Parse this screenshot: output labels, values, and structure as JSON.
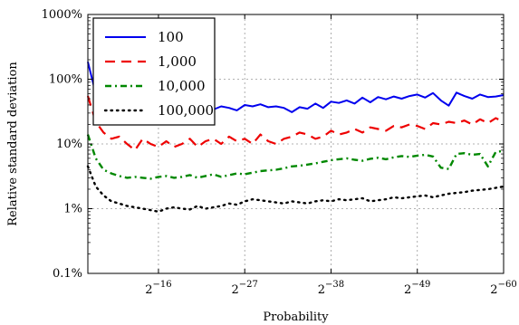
{
  "chart_data": {
    "type": "line",
    "title": "",
    "xlabel": "Probability",
    "ylabel": "Relative standard deviation",
    "x_scale": "log2 (probability 2^k, k = exponent)",
    "x_exponent_range": [
      -7,
      -60
    ],
    "x_ticks": [
      {
        "base": "2",
        "exp": "−16",
        "k": -16
      },
      {
        "base": "2",
        "exp": "−27",
        "k": -27
      },
      {
        "base": "2",
        "exp": "−38",
        "k": -38
      },
      {
        "base": "2",
        "exp": "−49",
        "k": -49
      },
      {
        "base": "2",
        "exp": "−60",
        "k": -60
      }
    ],
    "y_scale": "log10",
    "y_range_percent": [
      0.1,
      1000
    ],
    "y_ticks": [
      {
        "label": "0.1%",
        "value": 0.1
      },
      {
        "label": "1%",
        "value": 1
      },
      {
        "label": "10%",
        "value": 10
      },
      {
        "label": "100%",
        "value": 100
      },
      {
        "label": "1000%",
        "value": 1000
      }
    ],
    "grid": true,
    "legend_position": "top-left",
    "x_exponents": [
      -7,
      -8,
      -9,
      -10,
      -11,
      -12,
      -13,
      -14,
      -15,
      -16,
      -17,
      -18,
      -19,
      -20,
      -21,
      -22,
      -23,
      -24,
      -25,
      -26,
      -27,
      -28,
      -29,
      -30,
      -31,
      -32,
      -33,
      -34,
      -35,
      -36,
      -37,
      -38,
      -39,
      -40,
      -41,
      -42,
      -43,
      -44,
      -45,
      -46,
      -47,
      -48,
      -49,
      -50,
      -51,
      -52,
      -53,
      -54,
      -55,
      -56,
      -57,
      -58,
      -59,
      -60
    ],
    "series": [
      {
        "name": "100",
        "color": "#0000ee",
        "dash": "solid",
        "values": [
          185,
          60,
          38,
          42,
          40,
          36,
          38,
          35,
          33,
          36,
          39,
          34,
          36,
          33,
          37,
          35,
          34,
          38,
          36,
          33,
          40,
          38,
          41,
          37,
          38,
          36,
          31,
          37,
          35,
          42,
          36,
          45,
          43,
          47,
          42,
          52,
          44,
          53,
          49,
          54,
          50,
          55,
          58,
          52,
          61,
          47,
          39,
          62,
          55,
          50,
          58,
          53,
          54,
          57
        ]
      },
      {
        "name": "1,000",
        "color": "#ee0000",
        "dash": "longdash",
        "values": [
          55,
          22,
          15,
          12,
          13,
          10,
          8,
          12,
          10,
          9,
          11,
          9,
          10,
          12,
          9,
          11,
          12,
          10,
          13,
          11,
          12,
          10,
          14,
          11,
          10,
          12,
          13,
          15,
          14,
          12,
          13,
          16,
          14,
          15,
          17,
          15,
          18,
          17,
          16,
          19,
          18,
          20,
          19,
          17,
          21,
          20,
          22,
          21,
          23,
          20,
          24,
          21,
          25,
          22
        ]
      },
      {
        "name": "10,000",
        "color": "#008800",
        "dash": "dashdot",
        "values": [
          14,
          6,
          4,
          3.5,
          3.2,
          3,
          3.1,
          3,
          2.9,
          3.1,
          3.2,
          3,
          3.1,
          3.3,
          3,
          3.2,
          3.4,
          3.1,
          3.3,
          3.5,
          3.4,
          3.6,
          3.8,
          3.9,
          4,
          4.2,
          4.5,
          4.6,
          4.8,
          5,
          5.3,
          5.6,
          5.8,
          6,
          5.7,
          5.5,
          5.9,
          6.1,
          5.8,
          6.2,
          6.5,
          6.3,
          6.6,
          6.8,
          6.4,
          4.3,
          4.1,
          7,
          7.2,
          6.8,
          7,
          4.5,
          7.5,
          7.8
        ]
      },
      {
        "name": "100,000",
        "color": "#000000",
        "dash": "dotted",
        "values": [
          4.5,
          2.2,
          1.6,
          1.3,
          1.2,
          1.1,
          1.05,
          1.0,
          0.95,
          0.9,
          1.0,
          1.05,
          1.0,
          0.97,
          1.1,
          1.0,
          1.05,
          1.1,
          1.2,
          1.15,
          1.3,
          1.4,
          1.35,
          1.3,
          1.25,
          1.2,
          1.3,
          1.25,
          1.2,
          1.3,
          1.35,
          1.3,
          1.4,
          1.35,
          1.4,
          1.45,
          1.3,
          1.35,
          1.4,
          1.5,
          1.45,
          1.5,
          1.55,
          1.6,
          1.5,
          1.6,
          1.7,
          1.75,
          1.8,
          1.9,
          1.95,
          2,
          2.1,
          2.2
        ]
      }
    ]
  }
}
